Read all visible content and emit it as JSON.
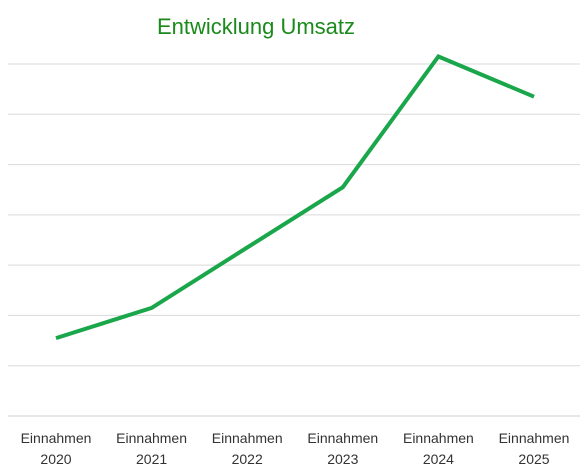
{
  "chart_data": {
    "type": "line",
    "title": "Entwicklung Umsatz",
    "xlabel": "",
    "ylabel": "",
    "categories": [
      [
        "Einnahmen",
        "2020"
      ],
      [
        "Einnahmen",
        "2021"
      ],
      [
        "Einnahmen",
        "2022"
      ],
      [
        "Einnahmen",
        "2023"
      ],
      [
        "Einnahmen",
        "2024"
      ],
      [
        "Einnahmen",
        "2025"
      ]
    ],
    "series": [
      {
        "values": [
          0.8,
          1.4,
          2.6,
          3.8,
          6.4,
          5.6
        ]
      }
    ],
    "ylim": [
      -0.75,
      6.25
    ],
    "gridlines": 8,
    "grid": true,
    "y_tick_labels_visible": false,
    "legend": "none",
    "colors": {
      "line": "#1aa64a",
      "title": "#1a8a1a",
      "grid": "#d9d9d9",
      "axis": "#cfcfcf",
      "tick_text": "#333333"
    }
  }
}
